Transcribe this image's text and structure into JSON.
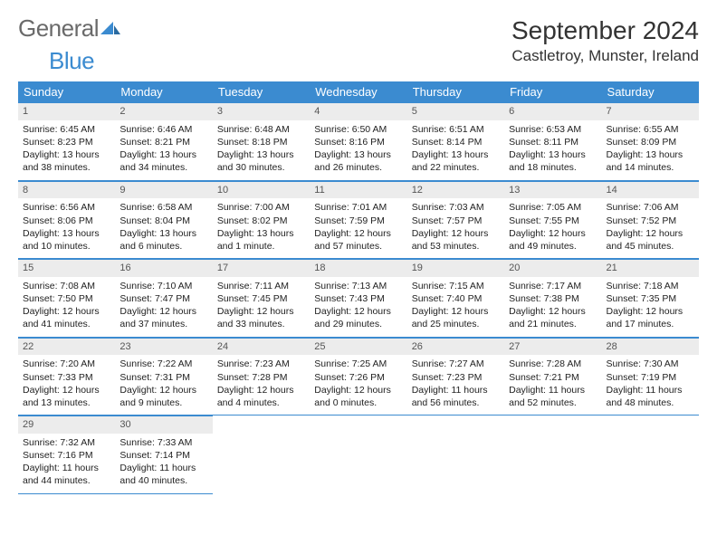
{
  "logo": {
    "textGray": "General",
    "textBlue": "Blue"
  },
  "title": "September 2024",
  "location": "Castletroy, Munster, Ireland",
  "colors": {
    "headerBar": "#3b8bd0",
    "dayNumBg": "#ececec",
    "rowBorder": "#3b8bd0",
    "logoGray": "#6a6a6a",
    "logoBlue": "#3b8bd0",
    "bodyText": "#222222",
    "background": "#ffffff"
  },
  "weekdays": [
    "Sunday",
    "Monday",
    "Tuesday",
    "Wednesday",
    "Thursday",
    "Friday",
    "Saturday"
  ],
  "weeks": [
    [
      {
        "d": "1",
        "sr": "6:45 AM",
        "ss": "8:23 PM",
        "dl": "13 hours and 38 minutes."
      },
      {
        "d": "2",
        "sr": "6:46 AM",
        "ss": "8:21 PM",
        "dl": "13 hours and 34 minutes."
      },
      {
        "d": "3",
        "sr": "6:48 AM",
        "ss": "8:18 PM",
        "dl": "13 hours and 30 minutes."
      },
      {
        "d": "4",
        "sr": "6:50 AM",
        "ss": "8:16 PM",
        "dl": "13 hours and 26 minutes."
      },
      {
        "d": "5",
        "sr": "6:51 AM",
        "ss": "8:14 PM",
        "dl": "13 hours and 22 minutes."
      },
      {
        "d": "6",
        "sr": "6:53 AM",
        "ss": "8:11 PM",
        "dl": "13 hours and 18 minutes."
      },
      {
        "d": "7",
        "sr": "6:55 AM",
        "ss": "8:09 PM",
        "dl": "13 hours and 14 minutes."
      }
    ],
    [
      {
        "d": "8",
        "sr": "6:56 AM",
        "ss": "8:06 PM",
        "dl": "13 hours and 10 minutes."
      },
      {
        "d": "9",
        "sr": "6:58 AM",
        "ss": "8:04 PM",
        "dl": "13 hours and 6 minutes."
      },
      {
        "d": "10",
        "sr": "7:00 AM",
        "ss": "8:02 PM",
        "dl": "13 hours and 1 minute."
      },
      {
        "d": "11",
        "sr": "7:01 AM",
        "ss": "7:59 PM",
        "dl": "12 hours and 57 minutes."
      },
      {
        "d": "12",
        "sr": "7:03 AM",
        "ss": "7:57 PM",
        "dl": "12 hours and 53 minutes."
      },
      {
        "d": "13",
        "sr": "7:05 AM",
        "ss": "7:55 PM",
        "dl": "12 hours and 49 minutes."
      },
      {
        "d": "14",
        "sr": "7:06 AM",
        "ss": "7:52 PM",
        "dl": "12 hours and 45 minutes."
      }
    ],
    [
      {
        "d": "15",
        "sr": "7:08 AM",
        "ss": "7:50 PM",
        "dl": "12 hours and 41 minutes."
      },
      {
        "d": "16",
        "sr": "7:10 AM",
        "ss": "7:47 PM",
        "dl": "12 hours and 37 minutes."
      },
      {
        "d": "17",
        "sr": "7:11 AM",
        "ss": "7:45 PM",
        "dl": "12 hours and 33 minutes."
      },
      {
        "d": "18",
        "sr": "7:13 AM",
        "ss": "7:43 PM",
        "dl": "12 hours and 29 minutes."
      },
      {
        "d": "19",
        "sr": "7:15 AM",
        "ss": "7:40 PM",
        "dl": "12 hours and 25 minutes."
      },
      {
        "d": "20",
        "sr": "7:17 AM",
        "ss": "7:38 PM",
        "dl": "12 hours and 21 minutes."
      },
      {
        "d": "21",
        "sr": "7:18 AM",
        "ss": "7:35 PM",
        "dl": "12 hours and 17 minutes."
      }
    ],
    [
      {
        "d": "22",
        "sr": "7:20 AM",
        "ss": "7:33 PM",
        "dl": "12 hours and 13 minutes."
      },
      {
        "d": "23",
        "sr": "7:22 AM",
        "ss": "7:31 PM",
        "dl": "12 hours and 9 minutes."
      },
      {
        "d": "24",
        "sr": "7:23 AM",
        "ss": "7:28 PM",
        "dl": "12 hours and 4 minutes."
      },
      {
        "d": "25",
        "sr": "7:25 AM",
        "ss": "7:26 PM",
        "dl": "12 hours and 0 minutes."
      },
      {
        "d": "26",
        "sr": "7:27 AM",
        "ss": "7:23 PM",
        "dl": "11 hours and 56 minutes."
      },
      {
        "d": "27",
        "sr": "7:28 AM",
        "ss": "7:21 PM",
        "dl": "11 hours and 52 minutes."
      },
      {
        "d": "28",
        "sr": "7:30 AM",
        "ss": "7:19 PM",
        "dl": "11 hours and 48 minutes."
      }
    ],
    [
      {
        "d": "29",
        "sr": "7:32 AM",
        "ss": "7:16 PM",
        "dl": "11 hours and 44 minutes."
      },
      {
        "d": "30",
        "sr": "7:33 AM",
        "ss": "7:14 PM",
        "dl": "11 hours and 40 minutes."
      },
      null,
      null,
      null,
      null,
      null
    ]
  ],
  "labels": {
    "sunrise": "Sunrise:",
    "sunset": "Sunset:",
    "daylight": "Daylight:"
  }
}
